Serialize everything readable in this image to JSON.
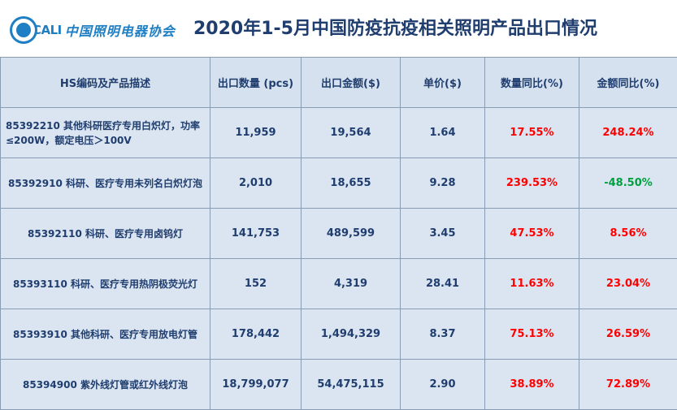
{
  "header": {
    "logo_abbr": "CALI",
    "logo_name": "中国照明电器协会",
    "title": "2020年1-5月中国防疫抗疫相关照明产品出口情况"
  },
  "table": {
    "columns": [
      "HS编码及产品描述",
      "出口数量 (pcs)",
      "出口金额($)",
      "单价($)",
      "数量同比(%)",
      "金额同比(%)"
    ],
    "rows": [
      {
        "desc": "85392210 其他科研医疗专用白炽灯，功率≤200W，额定电压＞100V",
        "qty": "11,959",
        "amount": "19,564",
        "price": "1.64",
        "qty_yoy": "17.55%",
        "amt_yoy": "248.24%",
        "amt_dir": "up"
      },
      {
        "desc": "85392910 科研、医疗专用未列名白炽灯泡",
        "qty": "2,010",
        "amount": "18,655",
        "price": "9.28",
        "qty_yoy": "239.53%",
        "amt_yoy": "-48.50%",
        "amt_dir": "down"
      },
      {
        "desc": "85392110 科研、医疗专用卤钨灯",
        "qty": "141,753",
        "amount": "489,599",
        "price": "3.45",
        "qty_yoy": "47.53%",
        "amt_yoy": "8.56%",
        "amt_dir": "up"
      },
      {
        "desc": "85393110 科研、医疗专用热阴极荧光灯",
        "qty": "152",
        "amount": "4,319",
        "price": "28.41",
        "qty_yoy": "11.63%",
        "amt_yoy": "23.04%",
        "amt_dir": "up"
      },
      {
        "desc": "85393910 其他科研、医疗专用放电灯管",
        "qty": "178,442",
        "amount": "1,494,329",
        "price": "8.37",
        "qty_yoy": "75.13%",
        "amt_yoy": "26.59%",
        "amt_dir": "up"
      },
      {
        "desc": "85394900 紫外线灯管或红外线灯泡",
        "qty": "18,799,077",
        "amount": "54,475,115",
        "price": "2.90",
        "qty_yoy": "38.89%",
        "amt_yoy": "72.89%",
        "amt_dir": "up"
      }
    ]
  },
  "colors": {
    "increase": "#ff0000",
    "decrease": "#00a040",
    "text": "#1f3d6e",
    "cell_bg": "#dbe5f1"
  }
}
